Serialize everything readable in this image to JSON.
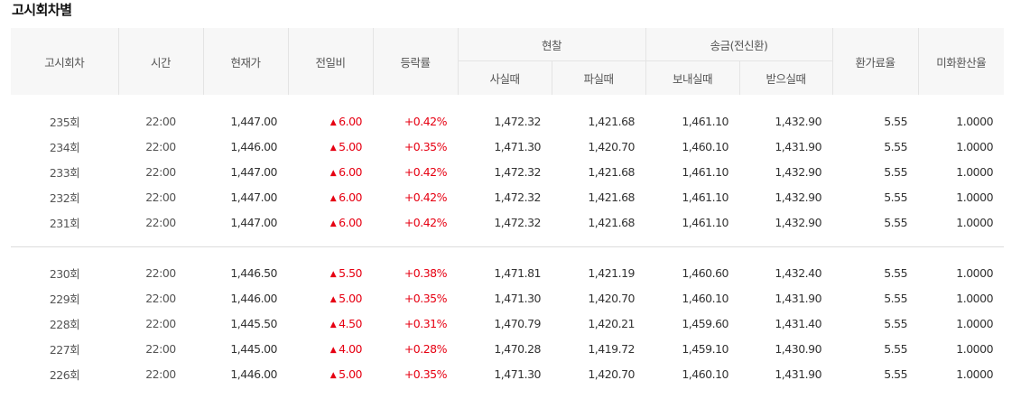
{
  "section_title": "고시회차별",
  "headers": {
    "round": "고시회차",
    "time": "시간",
    "current": "현재가",
    "change": "전일비",
    "rate": "등락률",
    "cash": "현찰",
    "cash_buy": "사실때",
    "cash_sell": "파실때",
    "remit": "송금(전신환)",
    "remit_send": "보내실때",
    "remit_receive": "받으실때",
    "exchange_fee_rate": "환가료율",
    "usd_conversion_rate": "미화환산율"
  },
  "up_symbol": "▲",
  "colors": {
    "up": "#e60012",
    "header_bg": "#f7f7f7",
    "border": "#e4e4e4"
  },
  "groups": [
    {
      "rows": [
        {
          "round": "235회",
          "time": "22:00",
          "current": "1,447.00",
          "change": "6.00",
          "rate": "+0.42%",
          "cash_buy": "1,472.32",
          "cash_sell": "1,421.68",
          "remit_send": "1,461.10",
          "remit_receive": "1,432.90",
          "fee": "5.55",
          "usd": "1.0000"
        },
        {
          "round": "234회",
          "time": "22:00",
          "current": "1,446.00",
          "change": "5.00",
          "rate": "+0.35%",
          "cash_buy": "1,471.30",
          "cash_sell": "1,420.70",
          "remit_send": "1,460.10",
          "remit_receive": "1,431.90",
          "fee": "5.55",
          "usd": "1.0000"
        },
        {
          "round": "233회",
          "time": "22:00",
          "current": "1,447.00",
          "change": "6.00",
          "rate": "+0.42%",
          "cash_buy": "1,472.32",
          "cash_sell": "1,421.68",
          "remit_send": "1,461.10",
          "remit_receive": "1,432.90",
          "fee": "5.55",
          "usd": "1.0000"
        },
        {
          "round": "232회",
          "time": "22:00",
          "current": "1,447.00",
          "change": "6.00",
          "rate": "+0.42%",
          "cash_buy": "1,472.32",
          "cash_sell": "1,421.68",
          "remit_send": "1,461.10",
          "remit_receive": "1,432.90",
          "fee": "5.55",
          "usd": "1.0000"
        },
        {
          "round": "231회",
          "time": "22:00",
          "current": "1,447.00",
          "change": "6.00",
          "rate": "+0.42%",
          "cash_buy": "1,472.32",
          "cash_sell": "1,421.68",
          "remit_send": "1,461.10",
          "remit_receive": "1,432.90",
          "fee": "5.55",
          "usd": "1.0000"
        }
      ]
    },
    {
      "rows": [
        {
          "round": "230회",
          "time": "22:00",
          "current": "1,446.50",
          "change": "5.50",
          "rate": "+0.38%",
          "cash_buy": "1,471.81",
          "cash_sell": "1,421.19",
          "remit_send": "1,460.60",
          "remit_receive": "1,432.40",
          "fee": "5.55",
          "usd": "1.0000"
        },
        {
          "round": "229회",
          "time": "22:00",
          "current": "1,446.00",
          "change": "5.00",
          "rate": "+0.35%",
          "cash_buy": "1,471.30",
          "cash_sell": "1,420.70",
          "remit_send": "1,460.10",
          "remit_receive": "1,431.90",
          "fee": "5.55",
          "usd": "1.0000"
        },
        {
          "round": "228회",
          "time": "22:00",
          "current": "1,445.50",
          "change": "4.50",
          "rate": "+0.31%",
          "cash_buy": "1,470.79",
          "cash_sell": "1,420.21",
          "remit_send": "1,459.60",
          "remit_receive": "1,431.40",
          "fee": "5.55",
          "usd": "1.0000"
        },
        {
          "round": "227회",
          "time": "22:00",
          "current": "1,445.00",
          "change": "4.00",
          "rate": "+0.28%",
          "cash_buy": "1,470.28",
          "cash_sell": "1,419.72",
          "remit_send": "1,459.10",
          "remit_receive": "1,430.90",
          "fee": "5.55",
          "usd": "1.0000"
        },
        {
          "round": "226회",
          "time": "22:00",
          "current": "1,446.00",
          "change": "5.00",
          "rate": "+0.35%",
          "cash_buy": "1,471.30",
          "cash_sell": "1,420.70",
          "remit_send": "1,460.10",
          "remit_receive": "1,431.90",
          "fee": "5.55",
          "usd": "1.0000"
        }
      ]
    }
  ]
}
